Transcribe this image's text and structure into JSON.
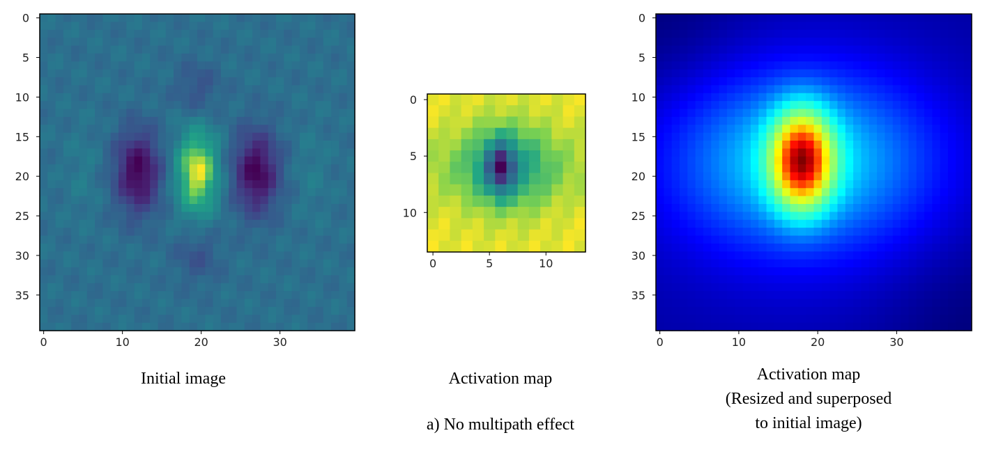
{
  "chart_data": [
    {
      "type": "heatmap",
      "name": "initial-image",
      "caption": "Initial image",
      "grid": [
        40,
        40
      ],
      "colormap": "viridis",
      "x_ticks": [
        0,
        10,
        20,
        30
      ],
      "y_ticks": [
        0,
        5,
        10,
        15,
        20,
        25,
        30,
        35
      ],
      "xlim": [
        -0.5,
        39.5
      ],
      "ylim": [
        39.5,
        -0.5
      ],
      "features": [
        {
          "kind": "negative-lobe",
          "x": 12,
          "y": 19.5
        },
        {
          "kind": "positive-lobe",
          "x": 19.5,
          "y": 19.5
        },
        {
          "kind": "negative-lobe",
          "x": 27,
          "y": 19.5
        }
      ]
    },
    {
      "type": "heatmap",
      "name": "activation-map",
      "caption": "Activation map",
      "grid": [
        14,
        14
      ],
      "colormap": "viridis",
      "x_ticks": [
        0,
        5,
        10
      ],
      "y_ticks": [
        0,
        5,
        10
      ],
      "xlim": [
        -0.5,
        13.5
      ],
      "ylim": [
        13.5,
        -0.5
      ],
      "features": [
        {
          "kind": "minimum",
          "x": 6,
          "y": 6
        }
      ]
    },
    {
      "type": "heatmap",
      "name": "superposed-map",
      "caption": [
        "Activation map",
        "(Resized and superposed",
        "to initial image)"
      ],
      "grid": [
        40,
        40
      ],
      "colormap": "jet",
      "x_ticks": [
        0,
        10,
        20,
        30
      ],
      "y_ticks": [
        0,
        5,
        10,
        15,
        20,
        25,
        30,
        35
      ],
      "xlim": [
        -0.5,
        39.5
      ],
      "ylim": [
        39.5,
        -0.5
      ],
      "features": [
        {
          "kind": "peak",
          "x": 18,
          "y": 18
        }
      ]
    }
  ],
  "figure_caption": "a) No multipath effect"
}
